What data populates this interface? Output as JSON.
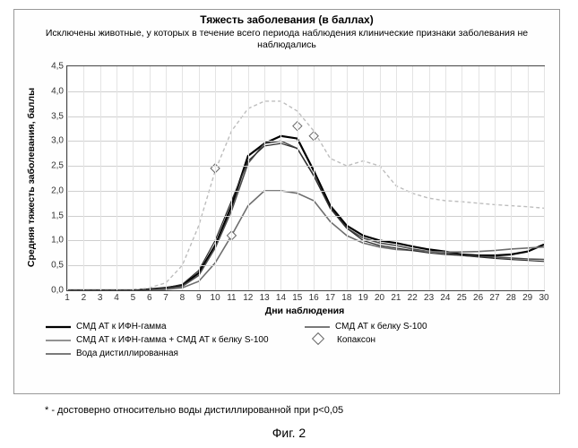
{
  "title": "Тяжесть заболевания (в баллах)",
  "subtitle": "Исключены животные, у которых в течение всего периода наблюдения клинические признаки заболевания не наблюдались",
  "x_label": "Дни наблюдения",
  "y_label": "Средняя тяжесть заболевания, баллы",
  "footnote": "* - достоверно относительно воды дистиллированной при p<0,05",
  "figure_label": "Фиг. 2",
  "x_categories": [
    1,
    2,
    3,
    4,
    5,
    6,
    7,
    8,
    9,
    10,
    11,
    12,
    13,
    14,
    15,
    16,
    17,
    18,
    19,
    20,
    21,
    22,
    23,
    24,
    25,
    26,
    27,
    28,
    29,
    30
  ],
  "y": {
    "min": 0.0,
    "max": 4.5,
    "step": 0.5
  },
  "colors": {
    "grid": "#cfcfcf",
    "vgrid": "#e4e4e4",
    "s1": "#000000",
    "s2": "#4d4d4d",
    "s3": "#6e6e6e",
    "s4": "#bdbdbd",
    "s5": "#2b2b2b",
    "marker_stroke": "#666666",
    "marker_fill": "#ffffff"
  },
  "series": [
    {
      "key": "s1",
      "label": "СМД АТ к ИФН-гамма",
      "width": 2.2,
      "dash": null,
      "values": [
        0,
        0,
        0,
        0,
        0,
        0.02,
        0.05,
        0.1,
        0.35,
        0.9,
        1.7,
        2.7,
        2.95,
        3.1,
        3.05,
        2.4,
        1.7,
        1.3,
        1.1,
        1.0,
        0.95,
        0.88,
        0.82,
        0.78,
        0.72,
        0.7,
        0.7,
        0.72,
        0.78,
        0.92
      ]
    },
    {
      "key": "s2",
      "label": "СМД АТ к белку S-100",
      "width": 1.6,
      "dash": null,
      "values": [
        0,
        0,
        0,
        0,
        0,
        0.0,
        0.02,
        0.08,
        0.3,
        0.85,
        1.6,
        2.55,
        2.95,
        3.0,
        2.85,
        2.3,
        1.65,
        1.25,
        1.05,
        0.95,
        0.9,
        0.83,
        0.78,
        0.75,
        0.7,
        0.68,
        0.67,
        0.65,
        0.63,
        0.62
      ]
    },
    {
      "key": "s3",
      "label": "СМД АТ к ИФН-гамма + СМД АТ к белку S-100",
      "width": 1.6,
      "dash": null,
      "values": [
        0,
        0,
        0,
        0,
        0,
        0.0,
        0.02,
        0.05,
        0.18,
        0.55,
        1.1,
        1.7,
        2.0,
        2.0,
        1.95,
        1.8,
        1.38,
        1.1,
        0.95,
        0.87,
        0.82,
        0.8,
        0.78,
        0.77,
        0.77,
        0.78,
        0.8,
        0.83,
        0.85,
        0.87
      ]
    },
    {
      "key": "s4",
      "label": "Копаксон",
      "width": 1.4,
      "dash": "4 3",
      "markers": [
        {
          "x": 10,
          "y": 2.45
        },
        {
          "x": 11,
          "y": 1.1
        },
        {
          "x": 15,
          "y": 3.3
        },
        {
          "x": 16,
          "y": 3.1
        }
      ],
      "values": [
        0,
        0,
        0,
        0,
        0,
        0.05,
        0.15,
        0.5,
        1.3,
        2.4,
        3.2,
        3.65,
        3.8,
        3.8,
        3.6,
        3.2,
        2.65,
        2.5,
        2.6,
        2.5,
        2.1,
        1.95,
        1.85,
        1.8,
        1.78,
        1.75,
        1.72,
        1.7,
        1.68,
        1.65
      ]
    },
    {
      "key": "s5",
      "label": "Вода дистиллированная",
      "width": 1.2,
      "dash": null,
      "values": [
        0,
        0,
        0,
        0,
        0,
        0.02,
        0.05,
        0.12,
        0.4,
        1.0,
        1.8,
        2.6,
        2.9,
        2.95,
        2.85,
        2.3,
        1.65,
        1.25,
        1.0,
        0.9,
        0.85,
        0.8,
        0.75,
        0.72,
        0.7,
        0.67,
        0.64,
        0.62,
        0.6,
        0.58
      ]
    }
  ],
  "legend_layout": [
    [
      "s1",
      "s2"
    ],
    [
      "s3",
      "s4"
    ],
    [
      "s5",
      null
    ]
  ]
}
